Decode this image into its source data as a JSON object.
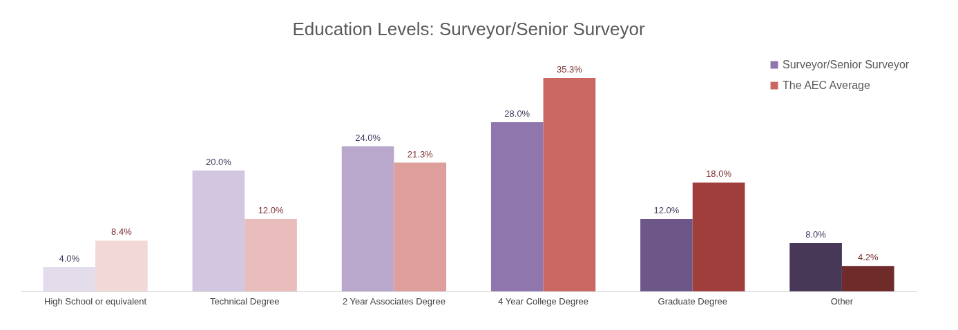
{
  "chart_data": {
    "type": "bar",
    "title": "Education Levels: Surveyor/Senior Surveyor",
    "categories": [
      "High School or equivalent",
      "Technical Degree",
      "2 Year Associates Degree",
      "4 Year College Degree",
      "Graduate Degree",
      "Other"
    ],
    "series": [
      {
        "name": "Surveyor/Senior Surveyor",
        "color": "#8f77ae",
        "colors": [
          "#e3dcea",
          "#d2c6e0",
          "#b9a8cc",
          "#8f77ae",
          "#6d5688",
          "#473858"
        ],
        "values": [
          4.0,
          20.0,
          24.0,
          28.0,
          12.0,
          8.0
        ],
        "value_labels": [
          "4.0%",
          "20.0%",
          "24.0%",
          "28.0%",
          "12.0%",
          "8.0%"
        ]
      },
      {
        "name": "The AEC Average",
        "color": "#cb6762",
        "colors": [
          "#f2d9d8",
          "#e8bdbb",
          "#de9f9c",
          "#cb6762",
          "#a03e3c",
          "#6e2b2a"
        ],
        "values": [
          8.4,
          12.0,
          21.3,
          35.3,
          18.0,
          4.2
        ],
        "value_labels": [
          "8.4%",
          "12.0%",
          "21.3%",
          "35.3%",
          "18.0%",
          "4.2%"
        ]
      }
    ],
    "legend": "top right",
    "grid": false
  }
}
